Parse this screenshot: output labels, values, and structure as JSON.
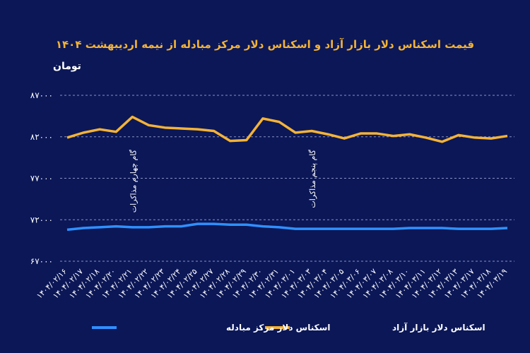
{
  "chart_data": {
    "type": "line",
    "title": "قیمت اسکناس دلار بازار آزاد و اسکناس دلار مرکز مبادله از نیمه اردیبهشت ۱۴۰۴",
    "y_label": "تومان",
    "categories": [
      "۱۴۰۴/۰۲/۱۶",
      "۱۴۰۴/۰۲/۱۷",
      "۱۴۰۴/۰۲/۱۸",
      "۱۴۰۴/۰۲/۲۰",
      "۱۴۰۴/۰۲/۲۱",
      "۱۴۰۴/۰۲/۲۲",
      "۱۴۰۴/۰۲/۲۳",
      "۱۴۰۴/۰۲/۲۴",
      "۱۴۰۴/۰۲/۲۵",
      "۱۴۰۴/۰۲/۲۷",
      "۱۴۰۴/۰۲/۲۸",
      "۱۴۰۴/۰۲/۲۹",
      "۱۴۰۴/۰۲/۳۰",
      "۱۴۰۴/۰۲/۳۱",
      "۱۴۰۴/۰۳/۰۱",
      "۱۴۰۴/۰۳/۰۳",
      "۱۴۰۴/۰۳/۰۴",
      "۱۴۰۴/۰۳/۰۵",
      "۱۴۰۴/۰۳/۰۶",
      "۱۴۰۴/۰۳/۰۷",
      "۱۴۰۴/۰۳/۰۸",
      "۱۴۰۴/۰۳/۱۰",
      "۱۴۰۴/۰۳/۱۱",
      "۱۴۰۴/۰۳/۱۲",
      "۱۴۰۴/۰۳/۱۳",
      "۱۴۰۴/۰۳/۱۷",
      "۱۴۰۴/۰۳/۱۸",
      "۱۴۰۴/۰۳/۱۹"
    ],
    "series": [
      {
        "name": "اسکناس دلار بازار آزاد",
        "color": "#f5b335",
        "values": [
          81900,
          82500,
          82900,
          82600,
          84400,
          83400,
          83100,
          83000,
          82900,
          82700,
          81500,
          81600,
          84200,
          83800,
          82500,
          82700,
          82300,
          81800,
          82400,
          82400,
          82100,
          82300,
          81900,
          81400,
          82200,
          81900,
          81800,
          82100
        ]
      },
      {
        "name": "اسکناس دلار مرکز مبادله",
        "color": "#2f8fff",
        "values": [
          70800,
          71000,
          71100,
          71200,
          71100,
          71100,
          71200,
          71200,
          71500,
          71500,
          71400,
          71400,
          71200,
          71100,
          70900,
          70900,
          70900,
          70900,
          70900,
          70900,
          70900,
          71000,
          71000,
          71000,
          70900,
          70900,
          70900,
          71000
        ]
      }
    ],
    "annotations": [
      {
        "text": "گام چهارم مذاکرات",
        "at": "۱۴۰۴/۰۲/۲۱"
      },
      {
        "text": "گام پنجم مذاکرات",
        "at": "۱۴۰۴/۰۳/۰۳"
      }
    ],
    "ylim": [
      67000,
      87000
    ],
    "yticks": [
      {
        "value": 67000,
        "label": "۶۷۰۰۰"
      },
      {
        "value": 72000,
        "label": "۷۲۰۰۰"
      },
      {
        "value": 77000,
        "label": "۷۷۰۰۰"
      },
      {
        "value": 82000,
        "label": "۸۲۰۰۰"
      },
      {
        "value": 87000,
        "label": "۸۷۰۰۰"
      }
    ],
    "grid": true
  }
}
